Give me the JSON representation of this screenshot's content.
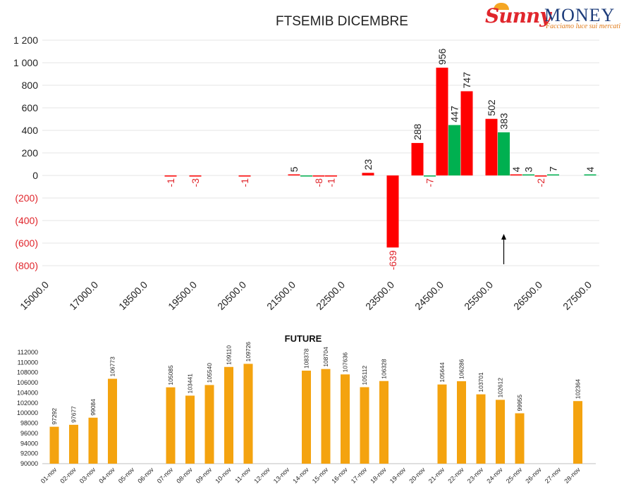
{
  "logo": {
    "text_sunny": "Sunny",
    "text_money": "MONEY",
    "tagline": "Facciamo luce sui mercati"
  },
  "chart_data": [
    {
      "type": "bar",
      "title": "FTSEMIB DICEMBRE",
      "colors": {
        "put": "#ff0000",
        "call": "#00b050",
        "negative_label": "#e0262c"
      },
      "ylim": [
        -800,
        1200
      ],
      "yticks": [
        1200,
        1000,
        800,
        600,
        400,
        200,
        0,
        -200,
        -400,
        -600,
        -800
      ],
      "ytick_labels": [
        "1 200",
        "1 000",
        "800",
        "600",
        "400",
        "200",
        "0",
        "(200)",
        "(400)",
        "(600)",
        "(800)"
      ],
      "xtick_labels": [
        "15000.0",
        "17000.0",
        "18500.0",
        "19500.0",
        "20500.0",
        "21500.0",
        "22500.0",
        "23500.0",
        "24500.0",
        "25500.0",
        "26500.0",
        "27500.0"
      ],
      "grid": true,
      "series": [
        {
          "color": "red",
          "points": [
            {
              "slot": 2.5,
              "value": -1
            },
            {
              "slot": 3,
              "value": -3
            },
            {
              "slot": 4,
              "value": -1
            },
            {
              "slot": 5,
              "value": 5
            },
            {
              "slot": 5.5,
              "value": -8
            },
            {
              "slot": 5.75,
              "value": -1
            },
            {
              "slot": 6.5,
              "value": 23
            },
            {
              "slot": 7,
              "value": -639
            },
            {
              "slot": 7.5,
              "value": 288
            },
            {
              "slot": 8,
              "value": 956
            },
            {
              "slot": 8.5,
              "value": 747
            },
            {
              "slot": 9,
              "value": 502
            },
            {
              "slot": 9.5,
              "value": 4
            },
            {
              "slot": 10,
              "value": -2
            }
          ]
        },
        {
          "color": "green",
          "points": [
            {
              "slot": 5.25,
              "value": -8
            },
            {
              "slot": 7.75,
              "value": -7
            },
            {
              "slot": 8.25,
              "value": 447
            },
            {
              "slot": 9.25,
              "value": 383
            },
            {
              "slot": 9.75,
              "value": 3
            },
            {
              "slot": 10.25,
              "value": 7
            },
            {
              "slot": 11,
              "value": 4
            }
          ]
        }
      ],
      "labels": [
        {
          "slot": 2.5,
          "text": "-1"
        },
        {
          "slot": 3,
          "text": "-3"
        },
        {
          "slot": 4,
          "text": "-1"
        },
        {
          "slot": 5,
          "text": "5"
        },
        {
          "slot": 5.5,
          "text": "-8"
        },
        {
          "slot": 5.75,
          "text": "-1"
        },
        {
          "slot": 6.5,
          "text": "23"
        },
        {
          "slot": 7,
          "text": "-639"
        },
        {
          "slot": 7.5,
          "text": "288"
        },
        {
          "slot": 7.75,
          "text": "-7"
        },
        {
          "slot": 8,
          "text": "956"
        },
        {
          "slot": 8.25,
          "text": "447"
        },
        {
          "slot": 8.5,
          "text": "747"
        },
        {
          "slot": 9,
          "text": "502"
        },
        {
          "slot": 9.25,
          "text": "383"
        },
        {
          "slot": 9.5,
          "text": "4"
        },
        {
          "slot": 9.75,
          "text": "3"
        },
        {
          "slot": 10,
          "text": "-2"
        },
        {
          "slot": 10.25,
          "text": "7"
        },
        {
          "slot": 11,
          "text": "4"
        }
      ],
      "arrow_slot": 9.25
    },
    {
      "type": "bar",
      "title": "FUTURE",
      "color": "#f4a30f",
      "ylim": [
        90000,
        112000
      ],
      "yticks": [
        112000,
        110000,
        108000,
        106000,
        104000,
        102000,
        100000,
        98000,
        96000,
        94000,
        92000,
        90000
      ],
      "categories": [
        "01-nov",
        "02-nov",
        "03-nov",
        "04-nov",
        "05-nov",
        "06-nov",
        "07-nov",
        "08-nov",
        "09-nov",
        "10-nov",
        "11-nov",
        "12-nov",
        "13-nov",
        "14-nov",
        "15-nov",
        "16-nov",
        "17-nov",
        "18-nov",
        "19-nov",
        "20-nov",
        "21-nov",
        "22-nov",
        "23-nov",
        "24-nov",
        "25-nov",
        "26-nov",
        "27-nov",
        "28-nov"
      ],
      "values": [
        97292,
        97677,
        99084,
        106773,
        null,
        null,
        105085,
        103441,
        105540,
        109110,
        109726,
        null,
        null,
        108378,
        108704,
        107636,
        105112,
        106328,
        null,
        null,
        105644,
        106286,
        103701,
        102612,
        99955,
        null,
        null,
        102364
      ],
      "grid": false
    }
  ]
}
